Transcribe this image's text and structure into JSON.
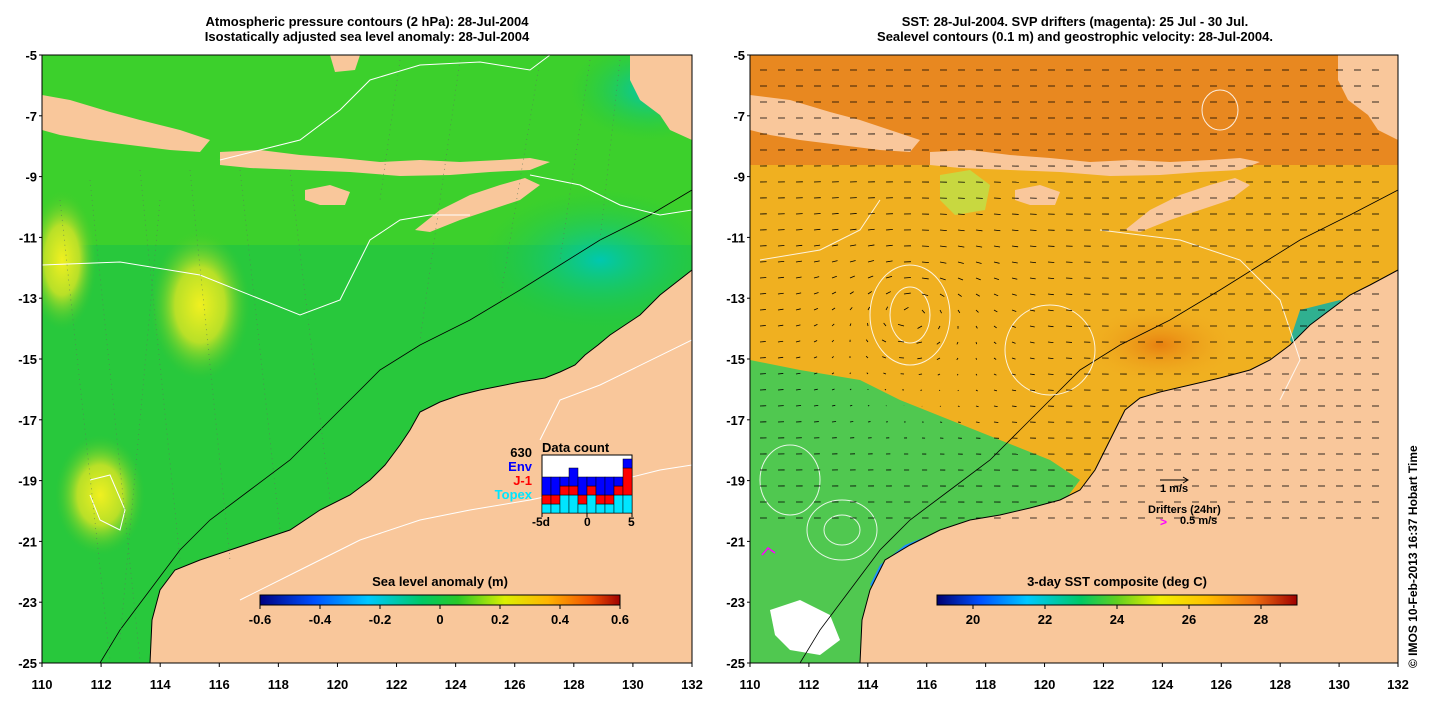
{
  "left_panel": {
    "title_line1": "Atmospheric pressure contours (2 hPa): 28-Jul-2004",
    "title_line2": "Isostatically adjusted sea level anomaly: 28-Jul-2004",
    "colorbar_title": "Sea level anomaly (m)",
    "colorbar_ticks": [
      "-0.6",
      "-0.4",
      "-0.2",
      "0",
      "0.2",
      "0.4",
      "0.6"
    ],
    "data_count": {
      "total": "630",
      "title": "Data count",
      "series": [
        "Env",
        "J-1",
        "Topex"
      ],
      "series_colors": [
        "#0000ff",
        "#ff0000",
        "#00e5ff"
      ],
      "x_ticks": [
        "-5d",
        "0",
        "5"
      ],
      "bars": [
        {
          "env": 2,
          "j1": 1,
          "topex": 1
        },
        {
          "env": 2,
          "j1": 1,
          "topex": 1
        },
        {
          "env": 1,
          "j1": 1,
          "topex": 2
        },
        {
          "env": 2,
          "j1": 1,
          "topex": 2
        },
        {
          "env": 2,
          "j1": 1,
          "topex": 1
        },
        {
          "env": 1,
          "j1": 1,
          "topex": 2
        },
        {
          "env": 2,
          "j1": 1,
          "topex": 1
        },
        {
          "env": 2,
          "j1": 1,
          "topex": 1
        },
        {
          "env": 1,
          "j1": 1,
          "topex": 2
        },
        {
          "env": 1,
          "j1": 3,
          "topex": 2
        }
      ]
    }
  },
  "right_panel": {
    "title_line1": "SST: 28-Jul-2004. SVP drifters (magenta): 25 Jul - 30 Jul.",
    "title_line2": "Sealevel contours (0.1 m) and geostrophic velocity: 28-Jul-2004.",
    "colorbar_title": "3-day SST composite (deg C)",
    "colorbar_ticks": [
      "20",
      "22",
      "24",
      "26",
      "28"
    ],
    "velocity_scale_label": "1 m/s",
    "drifters_label": "Drifters (24hr)",
    "drifters_scale_symbol": ">",
    "drifters_scale_label": "0.5 m/s"
  },
  "axes": {
    "y_ticks": [
      "-5",
      "-7",
      "-9",
      "-11",
      "-13",
      "-15",
      "-17",
      "-19",
      "-21",
      "-23",
      "-25"
    ],
    "x_ticks": [
      "110",
      "112",
      "114",
      "116",
      "118",
      "120",
      "122",
      "124",
      "126",
      "128",
      "130",
      "132"
    ],
    "lon_range": [
      110,
      132
    ],
    "lat_range": [
      -25,
      -5
    ]
  },
  "credit": "© IMOS 10-Feb-2013 16:37 Hobart Time",
  "colors": {
    "land": "#f9c79b",
    "ocean_sla": "#1dc832",
    "ocean_sst": "#f0b020",
    "marker": "#ff00ff"
  }
}
